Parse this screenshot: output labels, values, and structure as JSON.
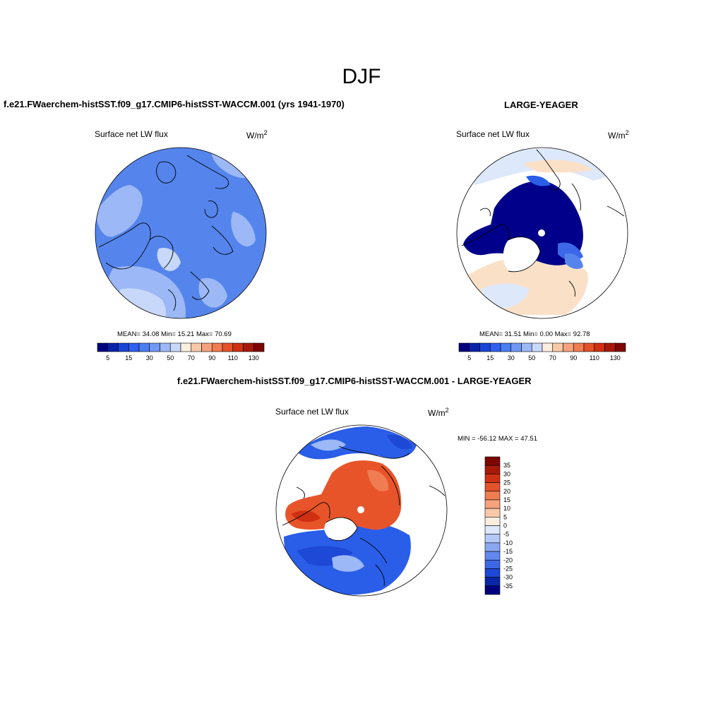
{
  "title": "DJF",
  "panels": [
    {
      "title": "f.e21.FWaerchem-histSST.f09_g17.CMIP6-histSST-WACCM.001 (yrs 1941-1970)",
      "variable": "Surface net LW flux",
      "units_base": "W/m",
      "units_exp": "2",
      "stats": "MEAN=  34.08  Min=  15.21  Max=  70.69"
    },
    {
      "title": "LARGE-YEAGER",
      "variable": "Surface net LW flux",
      "units_base": "W/m",
      "units_exp": "2",
      "stats": "MEAN=  31.51  Min=   0.00  Max=  92.78"
    },
    {
      "title": "f.e21.FWaerchem-histSST.f09_g17.CMIP6-histSST-WACCM.001 - LARGE-YEAGER",
      "variable": "Surface net LW flux",
      "units_base": "W/m",
      "units_exp": "2",
      "stats": "MIN = -56.12 MAX =  47.51"
    }
  ],
  "colorbar_horizontal": {
    "colors": [
      "#00007f",
      "#0a22a8",
      "#1a44d6",
      "#2e60ee",
      "#4a7cf2",
      "#7098f4",
      "#9cb8f6",
      "#c8d8fa",
      "#fbeede",
      "#f9c8a8",
      "#f6a27c",
      "#f07c52",
      "#e4522a",
      "#cf3012",
      "#a81a08",
      "#7d0604"
    ],
    "tick_labels": [
      "5",
      "15",
      "30",
      "50",
      "70",
      "90",
      "110",
      "130"
    ]
  },
  "colorbar_vertical": {
    "colors": [
      "#7d0604",
      "#a81a08",
      "#cf3012",
      "#e4522a",
      "#f07c52",
      "#f6a27c",
      "#f9c8a8",
      "#fbeede",
      "#dde8fa",
      "#b4c8f6",
      "#8aa8f2",
      "#6088ee",
      "#3c68e8",
      "#1e48d6",
      "#0a26a8",
      "#00007f"
    ],
    "tick_labels": [
      "35",
      "30",
      "25",
      "20",
      "15",
      "10",
      "5",
      "0",
      "-5",
      "-10",
      "-15",
      "-20",
      "-25",
      "-30",
      "-35"
    ]
  },
  "map_colors": {
    "panel1_base": "#5585ec",
    "panel1_light": "#9cb8f6",
    "panel1_lighter": "#c8d8fa",
    "panel2_deep": "#00008a",
    "panel2_light": "#fbe0c8",
    "panel2_pale": "#dde8fa",
    "panel3_red": "#e8542a",
    "panel3_blue": "#2a5ee8"
  }
}
